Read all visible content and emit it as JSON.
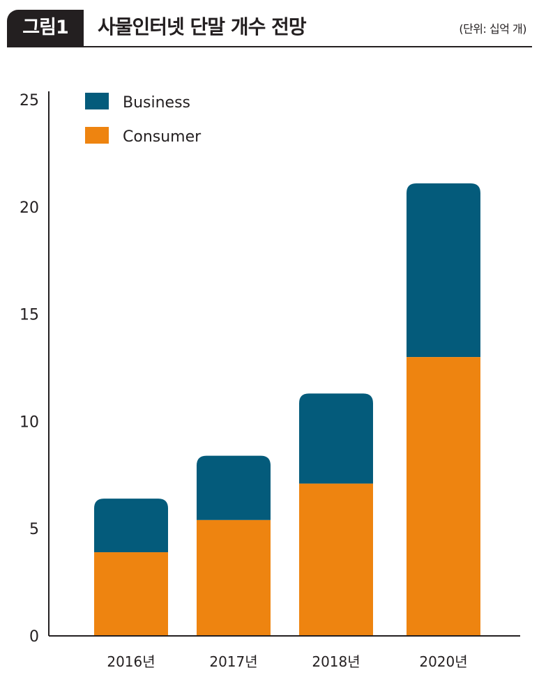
{
  "figure": {
    "badge": "그림1",
    "title": "사물인터넷 단말 개수 전망",
    "unit": "(단위: 십억 개)"
  },
  "colors": {
    "business": "#045b7b",
    "consumer": "#ee8410",
    "axis": "#231f20"
  },
  "chart_data": {
    "type": "bar",
    "stacked": true,
    "title": "사물인터넷 단말 개수 전망",
    "xlabel": "",
    "ylabel": "(단위: 십억 개)",
    "ylim": [
      0,
      25
    ],
    "yticks": [
      0,
      5,
      10,
      15,
      20,
      25
    ],
    "categories": [
      "2016년",
      "2017년",
      "2018년",
      "2020년"
    ],
    "series": [
      {
        "name": "Consumer",
        "values": [
          3.9,
          5.4,
          7.1,
          13.0
        ]
      },
      {
        "name": "Business",
        "values": [
          2.5,
          3.0,
          4.2,
          8.1
        ]
      }
    ],
    "legend": [
      "Business",
      "Consumer"
    ],
    "legend_position": "top-left"
  }
}
